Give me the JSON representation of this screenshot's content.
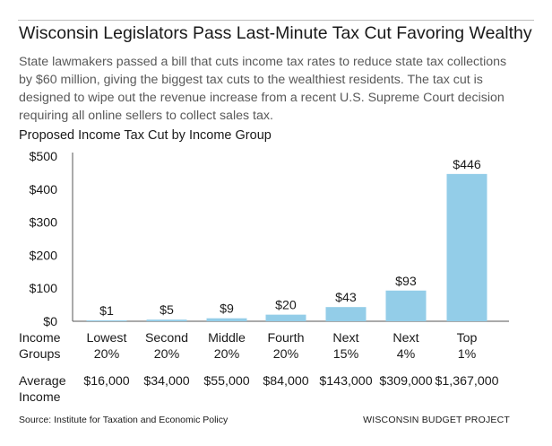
{
  "title": "Wisconsin Legislators Pass Last-Minute Tax Cut Favoring Wealthy",
  "subtitle": "State lawmakers passed a bill that cuts income tax rates to reduce state tax collections by $60 million, giving the biggest tax cuts to the wealthiest residents. The tax cut is designed to wipe out the revenue increase from a recent U.S. Supreme Court decision requiring all online sellers to collect sales tax.",
  "colors": {
    "bar": "#93cde8",
    "axis": "#555555",
    "text": "#1a1a1a",
    "subtitle": "#595959"
  },
  "chart_data": {
    "type": "bar",
    "title": "Proposed Income Tax Cut by Income Group",
    "categories": [
      "Lowest\n20%",
      "Second\n20%",
      "Middle\n20%",
      "Fourth\n20%",
      "Next\n15%",
      "Next\n4%",
      "Top\n1%"
    ],
    "values": [
      1,
      5,
      9,
      20,
      43,
      93,
      446
    ],
    "data_labels": [
      "$1",
      "$5",
      "$9",
      "$20",
      "$43",
      "$93",
      "$446"
    ],
    "ylim": [
      0,
      500
    ],
    "yticks": [
      0,
      100,
      200,
      300,
      400,
      500
    ],
    "ytick_labels": [
      "$0",
      "$100",
      "$200",
      "$300",
      "$400",
      "$500"
    ],
    "grid": false,
    "row_labels": {
      "groups": "Income\nGroups",
      "income": "Average\nIncome"
    },
    "average_income": [
      "$16,000",
      "$34,000",
      "$55,000",
      "$84,000",
      "$143,000",
      "$309,000",
      "$1,367,000"
    ]
  },
  "footer": {
    "source": "Source: Institute for Taxation and Economic Policy",
    "brand": "WISCONSIN BUDGET PROJECT"
  }
}
